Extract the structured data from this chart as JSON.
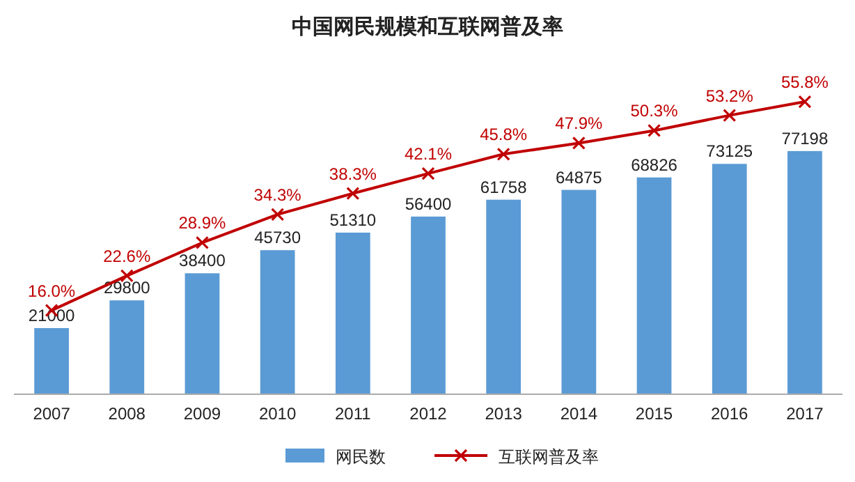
{
  "chart_data": {
    "type": "bar",
    "title": "中国网民规模和互联网普及率",
    "categories": [
      "2007",
      "2008",
      "2009",
      "2010",
      "2011",
      "2012",
      "2013",
      "2014",
      "2015",
      "2016",
      "2017"
    ],
    "series": [
      {
        "name": "网民数",
        "color": "#5b9bd5",
        "values": [
          21000,
          29800,
          38400,
          45730,
          51310,
          56400,
          61758,
          64875,
          68826,
          73125,
          77198
        ],
        "value_labels": [
          "21000",
          "29800",
          "38400",
          "45730",
          "51310",
          "56400",
          "61758",
          "64875",
          "68826",
          "73125",
          "77198"
        ]
      },
      {
        "name": "互联网普及率",
        "type": "line",
        "axis": "y2",
        "color": "#c00000",
        "marker": "cross",
        "values": [
          16.0,
          22.6,
          28.9,
          34.3,
          38.3,
          42.1,
          45.8,
          47.9,
          50.3,
          53.2,
          55.8
        ],
        "value_labels": [
          "16.0%",
          "22.6%",
          "28.9%",
          "34.3%",
          "38.3%",
          "42.1%",
          "45.8%",
          "47.9%",
          "50.3%",
          "53.2%",
          "55.8%"
        ]
      }
    ],
    "legend": "bottom",
    "tick_labels": "x"
  }
}
